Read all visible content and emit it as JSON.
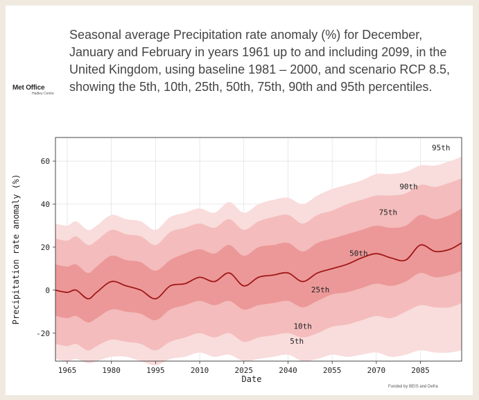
{
  "logo": {
    "main": "Met Office",
    "sub": "Hadley Centre"
  },
  "description": "Seasonal average Precipitation rate anomaly (%) for December, January and February in years 1961 up to and including 2099, in the United Kingdom, using baseline 1981 – 2000, and scenario RCP 8.5, showing the 5th, 10th, 25th, 50th, 75th, 90th and 95th percentiles.",
  "footer": {
    "funded": "Funded by BEIS and Defra"
  },
  "colors": {
    "band_outer": "#f9dcdc",
    "band_mid": "#f4bcbc",
    "band_inner": "#ec9898",
    "median": "#a01818",
    "grid": "#d9d9d9"
  },
  "chart_data": {
    "type": "area",
    "title": "",
    "xlabel": "Date",
    "ylabel": "Precipitation rate anomaly (%)",
    "xlim": [
      1961,
      2099
    ],
    "ylim": [
      -33,
      71
    ],
    "xticks": [
      1965,
      1980,
      1995,
      2010,
      2025,
      2040,
      2055,
      2070,
      2085
    ],
    "yticks": [
      -20,
      0,
      20,
      40,
      60
    ],
    "grid": true,
    "x": [
      1961,
      1965,
      1968,
      1972,
      1975,
      1980,
      1985,
      1990,
      1995,
      2000,
      2005,
      2010,
      2015,
      2020,
      2025,
      2030,
      2035,
      2040,
      2045,
      2050,
      2055,
      2060,
      2065,
      2070,
      2075,
      2080,
      2085,
      2090,
      2095,
      2099
    ],
    "series": [
      {
        "name": "5th",
        "values": [
          -32,
          -33,
          -32,
          -34,
          -33,
          -31,
          -31,
          -33,
          -35,
          -32,
          -31,
          -29,
          -31,
          -30,
          -33,
          -32,
          -31,
          -30,
          -33,
          -32,
          -30,
          -31,
          -30,
          -29,
          -31,
          -30,
          -28,
          -29,
          -29,
          -28
        ]
      },
      {
        "name": "10th",
        "values": [
          -25,
          -26,
          -25,
          -28,
          -26,
          -23,
          -24,
          -25,
          -28,
          -24,
          -22,
          -20,
          -22,
          -20,
          -24,
          -22,
          -21,
          -20,
          -22,
          -20,
          -17,
          -16,
          -14,
          -12,
          -13,
          -10,
          -7,
          -8,
          -8,
          -6
        ]
      },
      {
        "name": "25th",
        "values": [
          -12,
          -13,
          -12,
          -15,
          -13,
          -9,
          -10,
          -11,
          -14,
          -9,
          -7,
          -5,
          -7,
          -5,
          -9,
          -7,
          -6,
          -5,
          -8,
          -5,
          -2,
          -1,
          1,
          3,
          2,
          4,
          8,
          6,
          7,
          9
        ]
      },
      {
        "name": "50th",
        "values": [
          0,
          -1,
          0,
          -4,
          -1,
          4,
          2,
          0,
          -4,
          2,
          3,
          6,
          4,
          8,
          2,
          6,
          7,
          8,
          4,
          8,
          10,
          12,
          15,
          17,
          15,
          14,
          21,
          18,
          19,
          22
        ]
      },
      {
        "name": "75th",
        "values": [
          12,
          11,
          12,
          8,
          11,
          16,
          14,
          13,
          9,
          14,
          17,
          19,
          17,
          21,
          16,
          20,
          21,
          22,
          18,
          22,
          24,
          26,
          28,
          30,
          29,
          30,
          35,
          33,
          35,
          38
        ]
      },
      {
        "name": "90th",
        "values": [
          24,
          23,
          25,
          21,
          23,
          28,
          26,
          25,
          21,
          27,
          29,
          31,
          29,
          33,
          28,
          32,
          34,
          35,
          31,
          35,
          37,
          40,
          42,
          44,
          44,
          45,
          49,
          48,
          50,
          52
        ]
      },
      {
        "name": "95th",
        "values": [
          31,
          30,
          32,
          28,
          30,
          35,
          33,
          32,
          28,
          34,
          36,
          38,
          36,
          41,
          36,
          40,
          42,
          43,
          40,
          44,
          47,
          49,
          51,
          54,
          54,
          55,
          58,
          58,
          60,
          62
        ]
      }
    ],
    "annotations": [
      {
        "text": "95th",
        "x": 2092,
        "y": 65
      },
      {
        "text": "90th",
        "x": 2081,
        "y": 47
      },
      {
        "text": "75th",
        "x": 2074,
        "y": 35
      },
      {
        "text": "50th",
        "x": 2064,
        "y": 16
      },
      {
        "text": "25th",
        "x": 2051,
        "y": -1
      },
      {
        "text": "10th",
        "x": 2045,
        "y": -18
      },
      {
        "text": "5th",
        "x": 2043,
        "y": -25
      }
    ]
  }
}
